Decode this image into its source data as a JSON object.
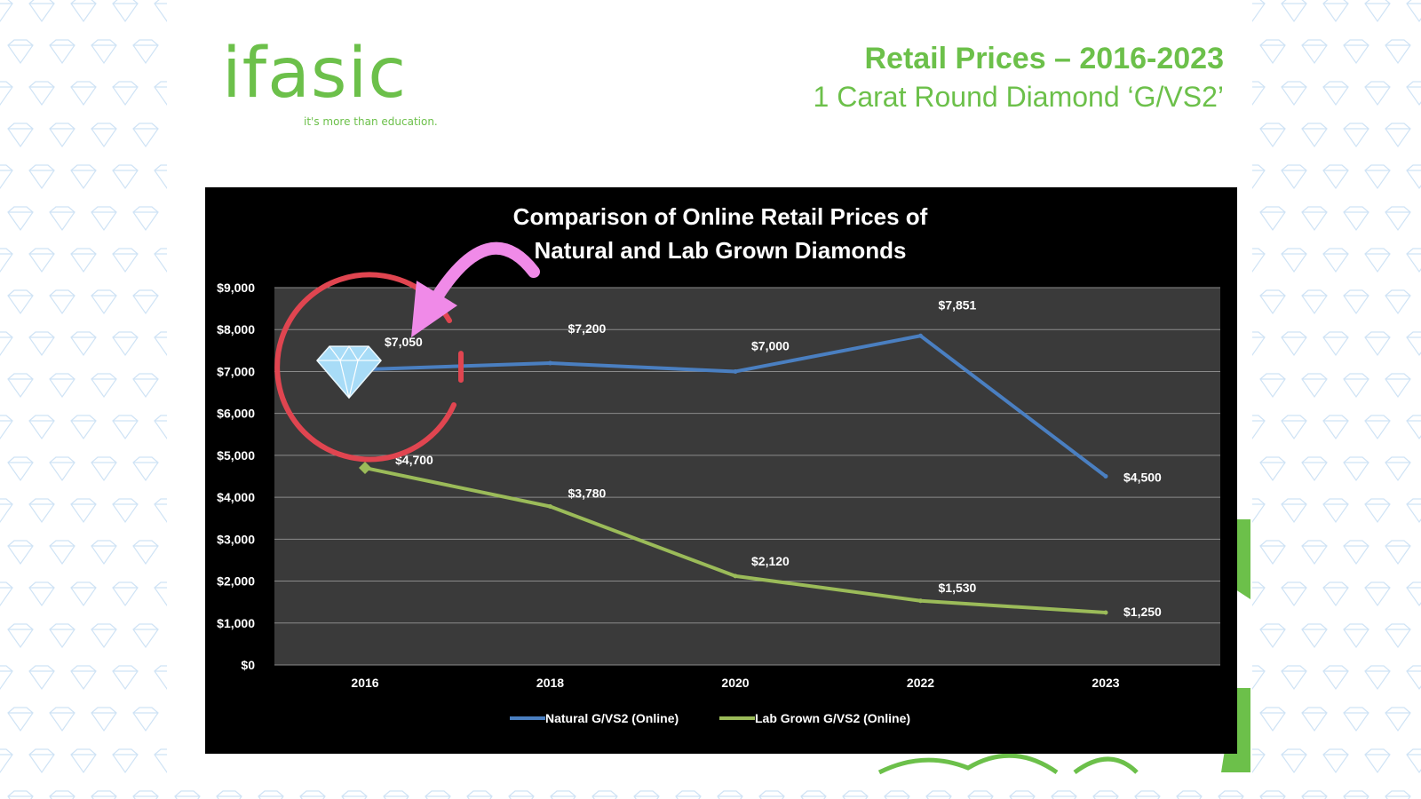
{
  "logo": {
    "wordmark": "ifasic",
    "tagline": "it's more than education."
  },
  "slide": {
    "title": "Retail Prices – 2016-2023",
    "subtitle": "1 Carat Round Diamond ‘G/VS2’"
  },
  "colors": {
    "brand_green": "#6cc04a",
    "natural_series": "#4a7fc1",
    "lab_series": "#9bbb59",
    "annotation_circle": "#e04550",
    "annotation_arrow": "#f08ae8"
  },
  "chart_data": {
    "type": "line",
    "title_lines": [
      "Comparison of Online Retail Prices of",
      "Natural and Lab Grown Diamonds"
    ],
    "categories": [
      "2016",
      "2018",
      "2020",
      "2022",
      "2023"
    ],
    "series": [
      {
        "name": "Natural G/VS2 (Online)",
        "values": [
          7050,
          7200,
          7000,
          7851,
          4500
        ],
        "labels": [
          "$7,050",
          "$7,200",
          "$7,000",
          "$7,851",
          "$4,500"
        ],
        "color": "#4a7fc1"
      },
      {
        "name": "Lab Grown G/VS2 (Online)",
        "values": [
          4700,
          3780,
          2120,
          1530,
          1250
        ],
        "labels": [
          "$4,700",
          "$3,780",
          "$2,120",
          "$1,530",
          "$1,250"
        ],
        "color": "#9bbb59"
      }
    ],
    "ylim": [
      0,
      9000
    ],
    "yticks": [
      0,
      1000,
      2000,
      3000,
      4000,
      5000,
      6000,
      7000,
      8000,
      9000
    ],
    "ytick_labels": [
      "$0",
      "$1,000",
      "$2,000",
      "$3,000",
      "$4,000",
      "$5,000",
      "$6,000",
      "$7,000",
      "$8,000",
      "$9,000"
    ],
    "grid": true,
    "legend_position": "bottom-center",
    "annotations": {
      "circle_around": "2016",
      "diamond_icon_at": "2016",
      "arrow_points_to": "$7,050"
    }
  }
}
